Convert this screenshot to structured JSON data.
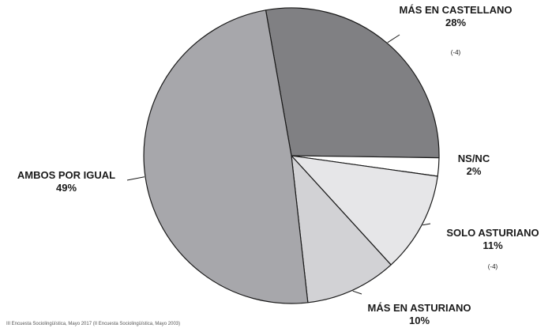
{
  "chart_data": {
    "type": "pie",
    "slices": [
      {
        "label": "MÁS EN CASTELLANO",
        "value": 28,
        "value_label": "28%",
        "note": "(-4)",
        "color": "#808083"
      },
      {
        "label": "NS/NC",
        "value": 2,
        "value_label": "2%",
        "note": "",
        "color": "#ffffff"
      },
      {
        "label": "SOLO ASTURIANO",
        "value": 11,
        "value_label": "11%",
        "note": "(-4)",
        "color": "#e6e6e8"
      },
      {
        "label": "MÁS EN ASTURIANO",
        "value": 10,
        "value_label": "10%",
        "note": "",
        "color": "#d2d2d5"
      },
      {
        "label": "AMBOS POR IGUAL",
        "value": 49,
        "value_label": "49%",
        "note": "",
        "color": "#a7a7ab"
      }
    ],
    "source": "III Encuesta Sociolingüística, Mayo 2017 (II Encuesta Sociolingüística, Mayo 2003)"
  }
}
